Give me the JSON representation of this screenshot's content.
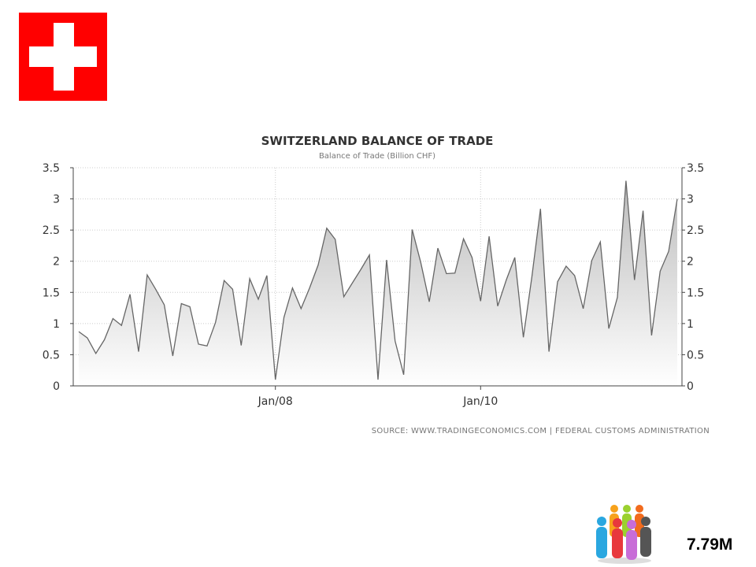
{
  "flag": {
    "icon": "swiss-flag-icon",
    "color": "#ff0000",
    "cross_color": "#ffffff"
  },
  "population": {
    "label": "7.79M",
    "icon": "people-group-icon"
  },
  "chart_data": {
    "type": "area",
    "title": "SWITZERLAND BALANCE OF TRADE",
    "subtitle": "Balance of Trade (Billion CHF)",
    "source": "SOURCE:  WWW.TRADINGECONOMICS.COM  |  FEDERAL  CUSTOMS  ADMINISTRATION",
    "ylim": [
      0,
      3.5
    ],
    "y_ticks": [
      "0",
      "0.5",
      "1",
      "1.5",
      "2",
      "2.5",
      "3",
      "3.5"
    ],
    "y_tick_values": [
      0,
      0.5,
      1,
      1.5,
      2,
      2.5,
      3,
      3.5
    ],
    "x_tick_labels": [
      {
        "label": "Jan/08",
        "index": 23
      },
      {
        "label": "Jan/10",
        "index": 47
      }
    ],
    "grid": true,
    "line_color": "#666666",
    "fill_color": "#bbbbbb",
    "series": [
      {
        "values": [
          0.87,
          0.77,
          0.52,
          0.74,
          1.08,
          0.97,
          1.47,
          0.55,
          1.78,
          1.55,
          1.3,
          0.48,
          1.32,
          1.27,
          0.67,
          0.64,
          1.02,
          1.69,
          1.55,
          0.65,
          1.72,
          1.39,
          1.77,
          0.1,
          1.1,
          1.57,
          1.24,
          1.57,
          1.94,
          2.53,
          2.35,
          1.43,
          1.65,
          1.87,
          2.1,
          0.1,
          2.02,
          0.72,
          0.18,
          2.51,
          1.98,
          1.35,
          2.21,
          1.8,
          1.81,
          2.36,
          2.06,
          1.36,
          2.4,
          1.28,
          1.7,
          2.06,
          0.78,
          1.75,
          2.84,
          0.55,
          1.67,
          1.92,
          1.77,
          1.24,
          2.01,
          2.31,
          0.92,
          1.42,
          3.29,
          1.7,
          2.81,
          0.81,
          1.84,
          2.16,
          3.0
        ]
      }
    ]
  }
}
